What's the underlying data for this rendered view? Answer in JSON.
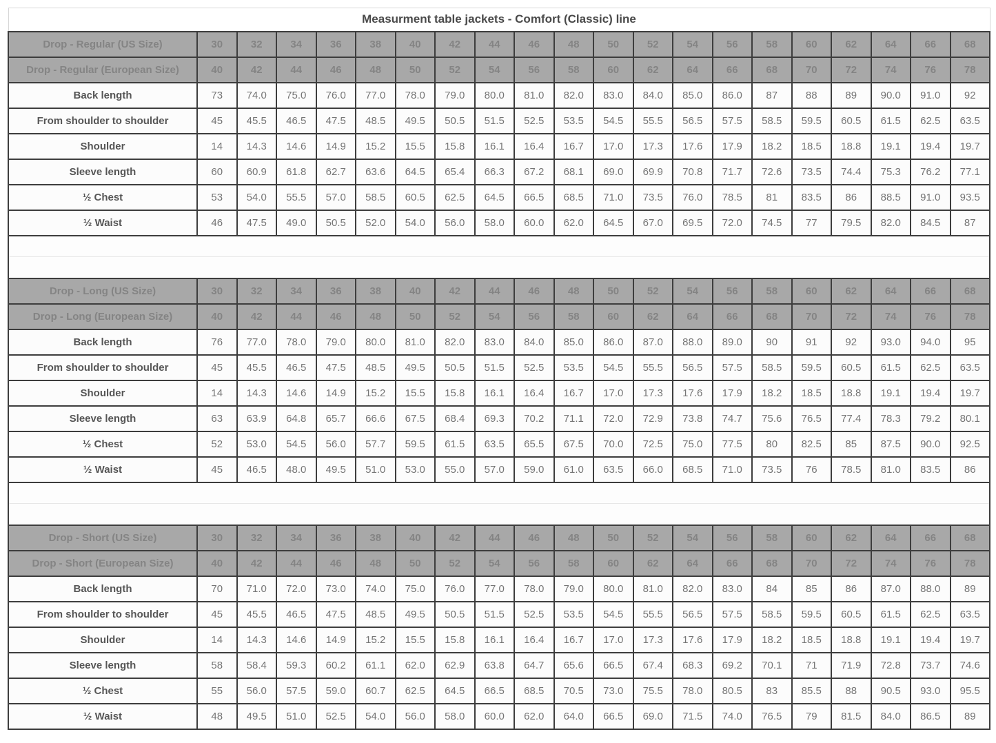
{
  "title": "Measurment table jackets - Comfort (Classic) line",
  "colors": {
    "border": "#3d3d3d",
    "header_bg": "#a8a8a8",
    "header_fg": "#848484",
    "title_fg": "#4a4a4a",
    "label_fg": "#565656",
    "value_fg": "#757575",
    "cell_bg": "#fcfcfc",
    "title_border": "#d6d6d6",
    "spacer_line": "#e7e7e7",
    "page_bg": "#ffffff"
  },
  "chart_data": {
    "type": "table",
    "title": "Measurment table jackets - Comfort (Classic) line",
    "columns_us": [
      "30",
      "32",
      "34",
      "36",
      "38",
      "40",
      "42",
      "44",
      "46",
      "48",
      "50",
      "52",
      "54",
      "56",
      "58",
      "60",
      "62",
      "64",
      "66",
      "68"
    ],
    "columns_eu": [
      "40",
      "42",
      "44",
      "46",
      "48",
      "50",
      "52",
      "54",
      "56",
      "58",
      "60",
      "62",
      "64",
      "66",
      "68",
      "70",
      "72",
      "74",
      "76",
      "78"
    ],
    "sections": [
      {
        "name": "Drop - Regular",
        "us_header": "Drop - Regular (US Size)",
        "eu_header": "Drop - Regular (European Size)",
        "rows": [
          {
            "label": "Back length",
            "values": [
              "73",
              "74.0",
              "75.0",
              "76.0",
              "77.0",
              "78.0",
              "79.0",
              "80.0",
              "81.0",
              "82.0",
              "83.0",
              "84.0",
              "85.0",
              "86.0",
              "87",
              "88",
              "89",
              "90.0",
              "91.0",
              "92"
            ]
          },
          {
            "label": "From shoulder to shoulder",
            "values": [
              "45",
              "45.5",
              "46.5",
              "47.5",
              "48.5",
              "49.5",
              "50.5",
              "51.5",
              "52.5",
              "53.5",
              "54.5",
              "55.5",
              "56.5",
              "57.5",
              "58.5",
              "59.5",
              "60.5",
              "61.5",
              "62.5",
              "63.5"
            ]
          },
          {
            "label": "Shoulder",
            "values": [
              "14",
              "14.3",
              "14.6",
              "14.9",
              "15.2",
              "15.5",
              "15.8",
              "16.1",
              "16.4",
              "16.7",
              "17.0",
              "17.3",
              "17.6",
              "17.9",
              "18.2",
              "18.5",
              "18.8",
              "19.1",
              "19.4",
              "19.7"
            ]
          },
          {
            "label": "Sleeve length",
            "values": [
              "60",
              "60.9",
              "61.8",
              "62.7",
              "63.6",
              "64.5",
              "65.4",
              "66.3",
              "67.2",
              "68.1",
              "69.0",
              "69.9",
              "70.8",
              "71.7",
              "72.6",
              "73.5",
              "74.4",
              "75.3",
              "76.2",
              "77.1"
            ]
          },
          {
            "label": "½ Chest",
            "values": [
              "53",
              "54.0",
              "55.5",
              "57.0",
              "58.5",
              "60.5",
              "62.5",
              "64.5",
              "66.5",
              "68.5",
              "71.0",
              "73.5",
              "76.0",
              "78.5",
              "81",
              "83.5",
              "86",
              "88.5",
              "91.0",
              "93.5"
            ]
          },
          {
            "label": "½ Waist",
            "values": [
              "46",
              "47.5",
              "49.0",
              "50.5",
              "52.0",
              "54.0",
              "56.0",
              "58.0",
              "60.0",
              "62.0",
              "64.5",
              "67.0",
              "69.5",
              "72.0",
              "74.5",
              "77",
              "79.5",
              "82.0",
              "84.5",
              "87"
            ]
          }
        ]
      },
      {
        "name": "Drop - Long",
        "us_header": "Drop - Long (US Size)",
        "eu_header": "Drop - Long (European Size)",
        "rows": [
          {
            "label": "Back length",
            "values": [
              "76",
              "77.0",
              "78.0",
              "79.0",
              "80.0",
              "81.0",
              "82.0",
              "83.0",
              "84.0",
              "85.0",
              "86.0",
              "87.0",
              "88.0",
              "89.0",
              "90",
              "91",
              "92",
              "93.0",
              "94.0",
              "95"
            ]
          },
          {
            "label": "From shoulder to shoulder",
            "values": [
              "45",
              "45.5",
              "46.5",
              "47.5",
              "48.5",
              "49.5",
              "50.5",
              "51.5",
              "52.5",
              "53.5",
              "54.5",
              "55.5",
              "56.5",
              "57.5",
              "58.5",
              "59.5",
              "60.5",
              "61.5",
              "62.5",
              "63.5"
            ]
          },
          {
            "label": "Shoulder",
            "values": [
              "14",
              "14.3",
              "14.6",
              "14.9",
              "15.2",
              "15.5",
              "15.8",
              "16.1",
              "16.4",
              "16.7",
              "17.0",
              "17.3",
              "17.6",
              "17.9",
              "18.2",
              "18.5",
              "18.8",
              "19.1",
              "19.4",
              "19.7"
            ]
          },
          {
            "label": "Sleeve length",
            "values": [
              "63",
              "63.9",
              "64.8",
              "65.7",
              "66.6",
              "67.5",
              "68.4",
              "69.3",
              "70.2",
              "71.1",
              "72.0",
              "72.9",
              "73.8",
              "74.7",
              "75.6",
              "76.5",
              "77.4",
              "78.3",
              "79.2",
              "80.1"
            ]
          },
          {
            "label": "½ Chest",
            "values": [
              "52",
              "53.0",
              "54.5",
              "56.0",
              "57.7",
              "59.5",
              "61.5",
              "63.5",
              "65.5",
              "67.5",
              "70.0",
              "72.5",
              "75.0",
              "77.5",
              "80",
              "82.5",
              "85",
              "87.5",
              "90.0",
              "92.5"
            ]
          },
          {
            "label": "½ Waist",
            "values": [
              "45",
              "46.5",
              "48.0",
              "49.5",
              "51.0",
              "53.0",
              "55.0",
              "57.0",
              "59.0",
              "61.0",
              "63.5",
              "66.0",
              "68.5",
              "71.0",
              "73.5",
              "76",
              "78.5",
              "81.0",
              "83.5",
              "86"
            ]
          }
        ]
      },
      {
        "name": "Drop - Short",
        "us_header": "Drop - Short (US Size)",
        "eu_header": "Drop - Short (European Size)",
        "rows": [
          {
            "label": "Back length",
            "values": [
              "70",
              "71.0",
              "72.0",
              "73.0",
              "74.0",
              "75.0",
              "76.0",
              "77.0",
              "78.0",
              "79.0",
              "80.0",
              "81.0",
              "82.0",
              "83.0",
              "84",
              "85",
              "86",
              "87.0",
              "88.0",
              "89"
            ]
          },
          {
            "label": "From shoulder to shoulder",
            "values": [
              "45",
              "45.5",
              "46.5",
              "47.5",
              "48.5",
              "49.5",
              "50.5",
              "51.5",
              "52.5",
              "53.5",
              "54.5",
              "55.5",
              "56.5",
              "57.5",
              "58.5",
              "59.5",
              "60.5",
              "61.5",
              "62.5",
              "63.5"
            ]
          },
          {
            "label": "Shoulder",
            "values": [
              "14",
              "14.3",
              "14.6",
              "14.9",
              "15.2",
              "15.5",
              "15.8",
              "16.1",
              "16.4",
              "16.7",
              "17.0",
              "17.3",
              "17.6",
              "17.9",
              "18.2",
              "18.5",
              "18.8",
              "19.1",
              "19.4",
              "19.7"
            ]
          },
          {
            "label": "Sleeve length",
            "values": [
              "58",
              "58.4",
              "59.3",
              "60.2",
              "61.1",
              "62.0",
              "62.9",
              "63.8",
              "64.7",
              "65.6",
              "66.5",
              "67.4",
              "68.3",
              "69.2",
              "70.1",
              "71",
              "71.9",
              "72.8",
              "73.7",
              "74.6"
            ]
          },
          {
            "label": "½ Chest",
            "values": [
              "55",
              "56.0",
              "57.5",
              "59.0",
              "60.7",
              "62.5",
              "64.5",
              "66.5",
              "68.5",
              "70.5",
              "73.0",
              "75.5",
              "78.0",
              "80.5",
              "83",
              "85.5",
              "88",
              "90.5",
              "93.0",
              "95.5"
            ]
          },
          {
            "label": "½ Waist",
            "values": [
              "48",
              "49.5",
              "51.0",
              "52.5",
              "54.0",
              "56.0",
              "58.0",
              "60.0",
              "62.0",
              "64.0",
              "66.5",
              "69.0",
              "71.5",
              "74.0",
              "76.5",
              "79",
              "81.5",
              "84.0",
              "86.5",
              "89"
            ]
          }
        ]
      }
    ]
  }
}
